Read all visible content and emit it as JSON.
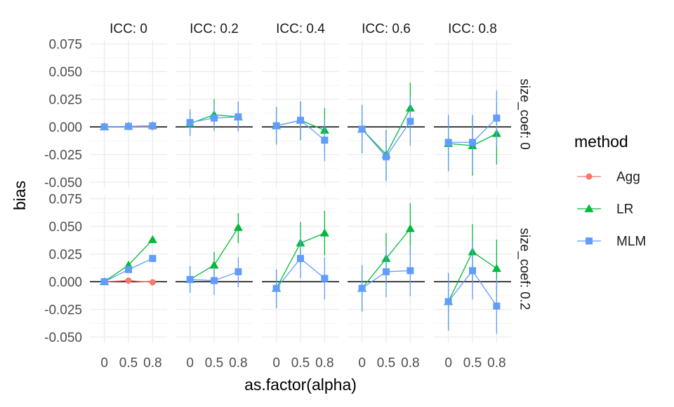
{
  "chart_data": {
    "type": "line",
    "facet_cols": {
      "variable": "ICC",
      "labels": [
        "ICC: 0",
        "ICC: 0.2",
        "ICC: 0.4",
        "ICC: 0.6",
        "ICC: 0.8"
      ]
    },
    "facet_rows": {
      "variable": "size_coef",
      "labels": [
        "size_coef: 0",
        "size_coef: 0.2"
      ]
    },
    "categories": [
      "0",
      "0.5",
      "0.8"
    ],
    "xlabel": "as.factor(alpha)",
    "ylabel": "bias",
    "ylim": [
      -0.055,
      0.078
    ],
    "yticks": [
      -0.05,
      -0.025,
      0,
      0.025,
      0.05,
      0.075
    ],
    "ytick_labels": [
      "-0.050",
      "-0.025",
      "0.000",
      "0.025",
      "0.050",
      "0.075"
    ],
    "reference_line": 0,
    "grid": true,
    "legend": {
      "title": "method",
      "position": "right",
      "entries": [
        {
          "name": "Agg",
          "color": "#F8766D",
          "marker": "circle"
        },
        {
          "name": "LR",
          "color": "#00BA38",
          "marker": "triangle"
        },
        {
          "name": "MLM",
          "color": "#619CFF",
          "marker": "square"
        }
      ]
    },
    "panels": [
      {
        "row": 0,
        "col": 0,
        "series": [
          {
            "name": "Agg",
            "values": [
              0.0,
              0.0,
              0.0
            ],
            "lo": [
              null,
              null,
              null
            ],
            "hi": [
              null,
              null,
              null
            ]
          },
          {
            "name": "LR",
            "values": [
              0.0,
              0.0005,
              0.001
            ],
            "lo": [
              null,
              null,
              null
            ],
            "hi": [
              null,
              null,
              null
            ]
          },
          {
            "name": "MLM",
            "values": [
              0.0,
              0.0005,
              0.001
            ],
            "lo": [
              null,
              null,
              null
            ],
            "hi": [
              null,
              null,
              null
            ]
          }
        ]
      },
      {
        "row": 0,
        "col": 1,
        "series": [
          {
            "name": "LR",
            "values": [
              0.003,
              0.011,
              0.009
            ],
            "lo": [
              -0.008,
              -0.002,
              -0.004
            ],
            "hi": [
              0.013,
              0.025,
              0.022
            ]
          },
          {
            "name": "MLM",
            "values": [
              0.004,
              0.008,
              0.009
            ],
            "lo": [
              -0.008,
              -0.004,
              -0.004
            ],
            "hi": [
              0.016,
              0.021,
              0.023
            ]
          }
        ]
      },
      {
        "row": 0,
        "col": 2,
        "series": [
          {
            "name": "LR",
            "values": [
              0.001,
              0.006,
              -0.003
            ],
            "lo": [
              -0.016,
              -0.012,
              -0.022
            ],
            "hi": [
              0.018,
              0.023,
              0.017
            ]
          },
          {
            "name": "MLM",
            "values": [
              0.001,
              0.006,
              -0.012
            ],
            "lo": [
              -0.016,
              -0.012,
              -0.031
            ],
            "hi": [
              0.018,
              0.023,
              0.007
            ]
          }
        ]
      },
      {
        "row": 0,
        "col": 3,
        "series": [
          {
            "name": "LR",
            "values": [
              -0.002,
              -0.025,
              0.017
            ],
            "lo": [
              -0.024,
              -0.047,
              -0.006
            ],
            "hi": [
              0.02,
              -0.003,
              0.04
            ]
          },
          {
            "name": "MLM",
            "values": [
              -0.002,
              -0.027,
              0.005
            ],
            "lo": [
              -0.024,
              -0.049,
              -0.017
            ],
            "hi": [
              0.02,
              -0.005,
              0.027
            ]
          }
        ]
      },
      {
        "row": 0,
        "col": 4,
        "series": [
          {
            "name": "LR",
            "values": [
              -0.015,
              -0.017,
              -0.006
            ],
            "lo": [
              -0.04,
              -0.044,
              -0.034
            ],
            "hi": [
              0.01,
              0.01,
              0.022
            ]
          },
          {
            "name": "MLM",
            "values": [
              -0.014,
              -0.014,
              0.008
            ],
            "lo": [
              -0.04,
              -0.04,
              -0.018
            ],
            "hi": [
              0.011,
              0.011,
              0.033
            ]
          }
        ]
      },
      {
        "row": 1,
        "col": 0,
        "series": [
          {
            "name": "Agg",
            "values": [
              0.0,
              0.001,
              -0.0005
            ],
            "lo": [
              null,
              null,
              null
            ],
            "hi": [
              null,
              null,
              null
            ]
          },
          {
            "name": "LR",
            "values": [
              0.0,
              0.015,
              0.038
            ],
            "lo": [
              null,
              null,
              null
            ],
            "hi": [
              null,
              null,
              null
            ]
          },
          {
            "name": "MLM",
            "values": [
              0.0,
              0.011,
              0.021
            ],
            "lo": [
              null,
              null,
              null
            ],
            "hi": [
              null,
              null,
              null
            ]
          }
        ]
      },
      {
        "row": 1,
        "col": 1,
        "series": [
          {
            "name": "LR",
            "values": [
              0.002,
              0.015,
              0.049
            ],
            "lo": [
              -0.01,
              0.002,
              0.035
            ],
            "hi": [
              0.014,
              0.027,
              0.062
            ]
          },
          {
            "name": "MLM",
            "values": [
              0.002,
              0.001,
              0.009
            ],
            "lo": [
              -0.01,
              -0.012,
              -0.005
            ],
            "hi": [
              0.014,
              0.014,
              0.022
            ]
          }
        ]
      },
      {
        "row": 1,
        "col": 2,
        "series": [
          {
            "name": "LR",
            "values": [
              -0.006,
              0.035,
              0.044
            ],
            "lo": [
              -0.024,
              0.016,
              0.024
            ],
            "hi": [
              0.011,
              0.054,
              0.064
            ]
          },
          {
            "name": "MLM",
            "values": [
              -0.006,
              0.021,
              0.003
            ],
            "lo": [
              -0.024,
              0.003,
              -0.016
            ],
            "hi": [
              0.011,
              0.04,
              0.022
            ]
          }
        ]
      },
      {
        "row": 1,
        "col": 3,
        "series": [
          {
            "name": "LR",
            "values": [
              -0.006,
              0.021,
              0.048
            ],
            "lo": [
              -0.027,
              -0.002,
              0.025
            ],
            "hi": [
              0.015,
              0.044,
              0.071
            ]
          },
          {
            "name": "MLM",
            "values": [
              -0.006,
              0.009,
              0.01
            ],
            "lo": [
              -0.027,
              -0.014,
              -0.013
            ],
            "hi": [
              0.015,
              0.032,
              0.033
            ]
          }
        ]
      },
      {
        "row": 1,
        "col": 4,
        "series": [
          {
            "name": "LR",
            "values": [
              -0.018,
              0.027,
              0.012
            ],
            "lo": [
              -0.044,
              0.001,
              -0.014
            ],
            "hi": [
              0.008,
              0.052,
              0.038
            ]
          },
          {
            "name": "MLM",
            "values": [
              -0.018,
              0.01,
              -0.022
            ],
            "lo": [
              -0.044,
              -0.016,
              -0.047
            ],
            "hi": [
              0.008,
              0.036,
              0.003
            ]
          }
        ]
      }
    ]
  }
}
